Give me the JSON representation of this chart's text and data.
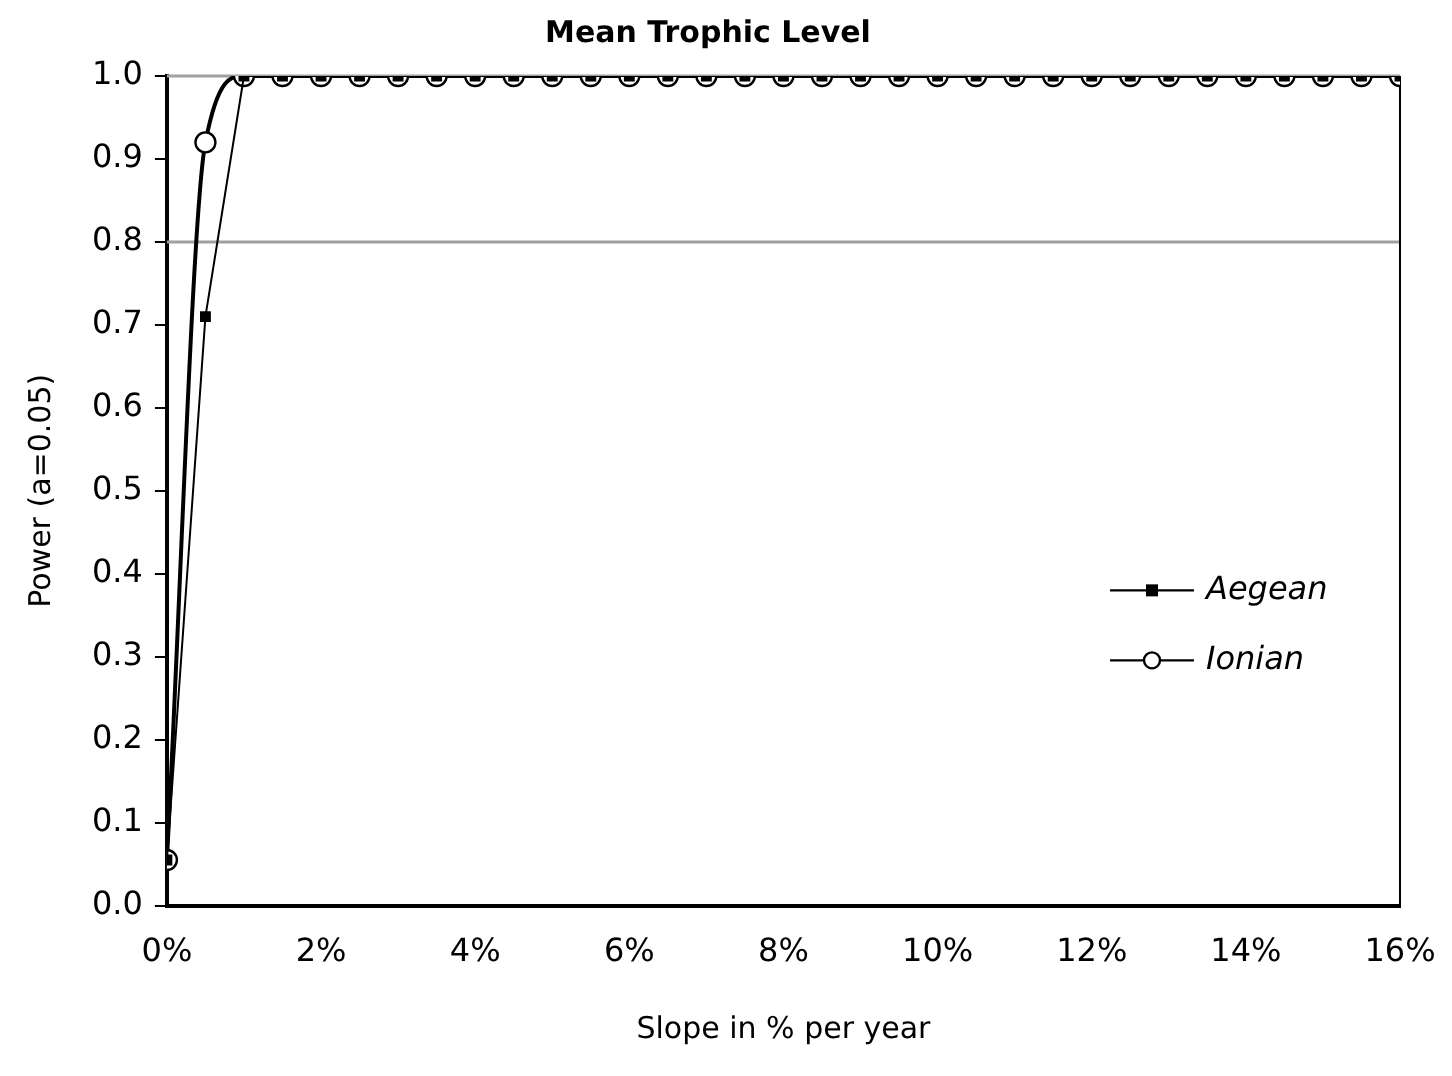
{
  "chart_data": {
    "type": "line",
    "title": "Mean Trophic Level",
    "xlabel": "Slope in % per year",
    "ylabel": "Power (a=0.05)",
    "x": [
      0,
      0.5,
      1,
      1.5,
      2,
      2.5,
      3,
      3.5,
      4,
      4.5,
      5,
      5.5,
      6,
      6.5,
      7,
      7.5,
      8,
      8.5,
      9,
      9.5,
      10,
      10.5,
      11,
      11.5,
      12,
      12.5,
      13,
      13.5,
      14,
      14.5,
      15,
      15.5,
      16
    ],
    "series": [
      {
        "name": "Aegean",
        "color": "#000000",
        "marker": "square",
        "values": [
          0.055,
          0.71,
          1,
          1,
          1,
          1,
          1,
          1,
          1,
          1,
          1,
          1,
          1,
          1,
          1,
          1,
          1,
          1,
          1,
          1,
          1,
          1,
          1,
          1,
          1,
          1,
          1,
          1,
          1,
          1,
          1,
          1,
          1
        ]
      },
      {
        "name": "Ionian",
        "color": "#000000",
        "marker": "circle",
        "values": [
          0.055,
          0.92,
          1,
          1,
          1,
          1,
          1,
          1,
          1,
          1,
          1,
          1,
          1,
          1,
          1,
          1,
          1,
          1,
          1,
          1,
          1,
          1,
          1,
          1,
          1,
          1,
          1,
          1,
          1,
          1,
          1,
          1,
          1
        ]
      }
    ],
    "xlim": [
      0,
      16
    ],
    "xticks": [
      {
        "value": 0,
        "label": "0%"
      },
      {
        "value": 2,
        "label": "2%"
      },
      {
        "value": 4,
        "label": "4%"
      },
      {
        "value": 6,
        "label": "6%"
      },
      {
        "value": 8,
        "label": "8%"
      },
      {
        "value": 10,
        "label": "10%"
      },
      {
        "value": 12,
        "label": "12%"
      },
      {
        "value": 14,
        "label": "14%"
      },
      {
        "value": 16,
        "label": "16%"
      }
    ],
    "ylim": [
      0,
      1
    ],
    "yticks": [
      {
        "value": 0,
        "label": "0.0"
      },
      {
        "value": 0.1,
        "label": "0.1"
      },
      {
        "value": 0.2,
        "label": "0.2"
      },
      {
        "value": 0.3,
        "label": "0.3"
      },
      {
        "value": 0.4,
        "label": "0.4"
      },
      {
        "value": 0.5,
        "label": "0.5"
      },
      {
        "value": 0.6,
        "label": "0.6"
      },
      {
        "value": 0.7,
        "label": "0.7"
      },
      {
        "value": 0.8,
        "label": "0.8"
      },
      {
        "value": 0.9,
        "label": "0.9"
      },
      {
        "value": 1,
        "label": "1.0"
      }
    ],
    "ref_lines": [
      {
        "axis": "y",
        "value": 0.8,
        "color": "#a0a0a0"
      }
    ],
    "grid": false,
    "legend": "right"
  }
}
